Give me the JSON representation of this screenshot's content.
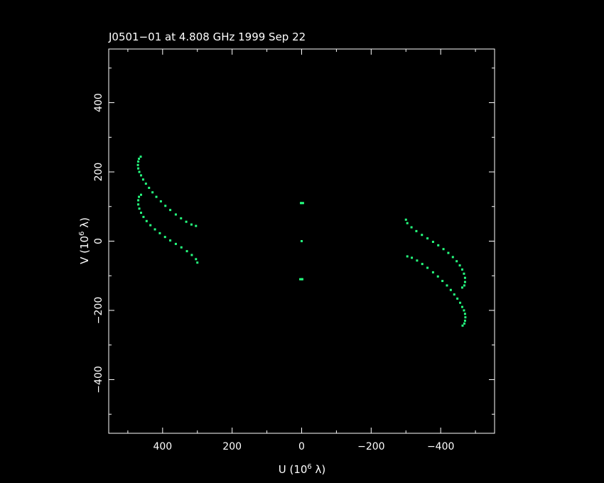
{
  "chart_data": {
    "type": "scatter",
    "title": "J0501−01 at 4.808 GHz 1999 Sep 22",
    "xlabel": {
      "prefix": "U (10",
      "exp": "6",
      "suffix": " λ)"
    },
    "ylabel": {
      "prefix": "V (10",
      "exp": "6",
      "suffix": " λ)"
    },
    "xlim": [
      555,
      -555
    ],
    "ylim": [
      -555,
      555
    ],
    "x_ticks": [
      400,
      200,
      0,
      -200,
      -400
    ],
    "y_ticks": [
      -400,
      -200,
      0,
      200,
      400
    ],
    "x_tick_labels": [
      "400",
      "200",
      "0",
      "−200",
      "−400"
    ],
    "y_tick_labels": [
      "−400",
      "−200",
      "0",
      "200",
      "400"
    ],
    "x_minor_step": 100,
    "y_minor_step": 100,
    "grid": false,
    "series": [
      {
        "values": [
          [
            463,
            244
          ],
          [
            468,
            238
          ],
          [
            470,
            230
          ],
          [
            471,
            220
          ],
          [
            470,
            210
          ],
          [
            467,
            200
          ],
          [
            462,
            190
          ],
          [
            456,
            178
          ],
          [
            448,
            166
          ],
          [
            439,
            154
          ],
          [
            429,
            141
          ],
          [
            418,
            128
          ],
          [
            405,
            115
          ],
          [
            392,
            102
          ],
          [
            378,
            90
          ],
          [
            362,
            77
          ],
          [
            347,
            66
          ],
          [
            332,
            56
          ],
          [
            317,
            48
          ],
          [
            304,
            44
          ],
          [
            -463,
            -244
          ],
          [
            -468,
            -238
          ],
          [
            -470,
            -230
          ],
          [
            -471,
            -220
          ],
          [
            -470,
            -210
          ],
          [
            -467,
            -200
          ],
          [
            -462,
            -190
          ],
          [
            -456,
            -178
          ],
          [
            -448,
            -166
          ],
          [
            -439,
            -154
          ],
          [
            -429,
            -141
          ],
          [
            -418,
            -128
          ],
          [
            -405,
            -115
          ],
          [
            -392,
            -102
          ],
          [
            -378,
            -90
          ],
          [
            -362,
            -77
          ],
          [
            -347,
            -66
          ],
          [
            -332,
            -56
          ],
          [
            -317,
            -48
          ],
          [
            -304,
            -44
          ]
        ]
      },
      {
        "values": [
          [
            462,
            134
          ],
          [
            468,
            128
          ],
          [
            470,
            118
          ],
          [
            470,
            106
          ],
          [
            467,
            94
          ],
          [
            462,
            82
          ],
          [
            455,
            70
          ],
          [
            446,
            58
          ],
          [
            435,
            46
          ],
          [
            422,
            34
          ],
          [
            408,
            23
          ],
          [
            393,
            12
          ],
          [
            378,
            2
          ],
          [
            362,
            -8
          ],
          [
            346,
            -18
          ],
          [
            330,
            -29
          ],
          [
            316,
            -40
          ],
          [
            304,
            -52
          ],
          [
            300,
            -62
          ],
          [
            -462,
            -134
          ],
          [
            -468,
            -128
          ],
          [
            -470,
            -118
          ],
          [
            -470,
            -106
          ],
          [
            -467,
            -94
          ],
          [
            -462,
            -82
          ],
          [
            -455,
            -70
          ],
          [
            -446,
            -58
          ],
          [
            -435,
            -46
          ],
          [
            -422,
            -34
          ],
          [
            -408,
            -23
          ],
          [
            -393,
            -12
          ],
          [
            -378,
            -2
          ],
          [
            -362,
            8
          ],
          [
            -346,
            18
          ],
          [
            -330,
            29
          ],
          [
            -316,
            40
          ],
          [
            -304,
            52
          ],
          [
            -300,
            62
          ]
        ]
      },
      {
        "values": [
          [
            0,
            110
          ],
          [
            -4,
            110
          ],
          [
            2,
            110
          ],
          [
            0,
            0
          ],
          [
            0,
            -110
          ],
          [
            4,
            -110
          ],
          [
            -2,
            -110
          ]
        ]
      }
    ],
    "colors": {
      "background": "#000000",
      "axes": "#ffffff",
      "points": "#25ff7f"
    }
  }
}
